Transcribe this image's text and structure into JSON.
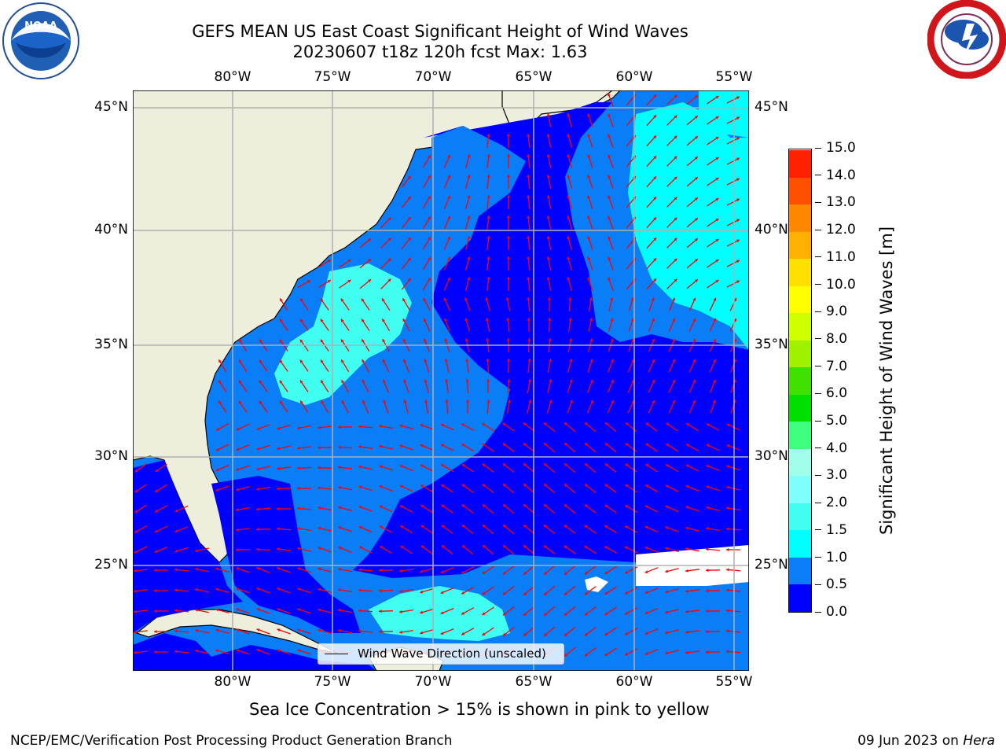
{
  "title_line1": "GEFS MEAN US East Coast Significant Height of Wind Waves",
  "title_line2": "20230607 t18z 120h fcst   Max: 1.63",
  "lon_labels": [
    "80°W",
    "75°W",
    "70°W",
    "65°W",
    "60°W",
    "55°W"
  ],
  "lat_labels": [
    "45°N",
    "40°N",
    "35°N",
    "30°N",
    "25°N"
  ],
  "colorbar": {
    "label": "Significant Height of Wind Waves [m]",
    "ticks": [
      "0.0",
      "0.5",
      "1.0",
      "1.5",
      "2.0",
      "3.0",
      "4.0",
      "5.0",
      "6.0",
      "7.0",
      "8.0",
      "9.0",
      "10.0",
      "11.0",
      "12.0",
      "13.0",
      "14.0",
      "15.0"
    ],
    "colors": [
      "#0000ff",
      "#0a7ef7",
      "#00ffff",
      "#40fff0",
      "#80ffff",
      "#a0ffe8",
      "#40ff80",
      "#00e000",
      "#40e000",
      "#a0f000",
      "#d0ff00",
      "#ffff00",
      "#ffe000",
      "#ffb000",
      "#ff8800",
      "#ff5000",
      "#ff2000",
      "#ff0000"
    ]
  },
  "legend_label": "Wind Wave Direction (unscaled)",
  "ice_note": "Sea Ice Concentration > 15% is shown in pink to yellow",
  "footer_left": "NCEP/EMC/Verification Post Processing Product Generation Branch",
  "footer_date": "09 Jun 2023 on ",
  "footer_host": "Hera",
  "colors": {
    "land": "#eeeedc",
    "band_0_05": "#0000ff",
    "band_05_10": "#0a7ef7",
    "band_10_15": "#00ffff",
    "band_15_20": "#40fff0",
    "arrow": "#ff0000",
    "grid": "#b0b0b0"
  },
  "logos": [
    "noaa-logo",
    "nws-logo"
  ]
}
